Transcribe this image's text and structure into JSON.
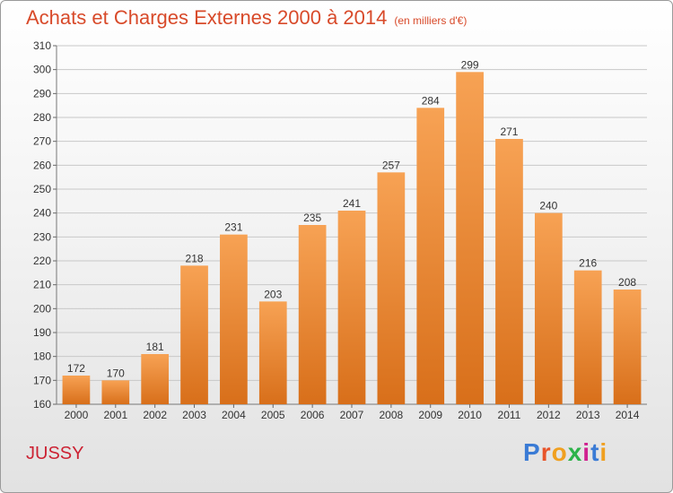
{
  "title": "Achats et Charges Externes 2000 à 2014",
  "subtitle": "(en milliers d'€)",
  "city": "JUSSY",
  "logo": {
    "text": "Proxiti",
    "colors": [
      "#3a7bd5",
      "#e8542a",
      "#f0a020",
      "#2db34a",
      "#d02090",
      "#3a7bd5",
      "#f0a020"
    ]
  },
  "colors": {
    "title": "#d84a2a",
    "bar_top": "#f7a254",
    "bar_bottom": "#d86f1a",
    "grid": "#c8c8c8",
    "city": "#cc2233"
  },
  "chart_data": {
    "type": "bar",
    "categories": [
      "2000",
      "2001",
      "2002",
      "2003",
      "2004",
      "2005",
      "2006",
      "2007",
      "2008",
      "2009",
      "2010",
      "2011",
      "2012",
      "2013",
      "2014"
    ],
    "values": [
      172,
      170,
      181,
      218,
      231,
      203,
      235,
      241,
      257,
      284,
      299,
      271,
      240,
      216,
      208
    ],
    "title": "Achats et Charges Externes 2000 à 2014",
    "subtitle": "(en milliers d'€)",
    "xlabel": "",
    "ylabel": "",
    "ylim": [
      160,
      310
    ],
    "yticks": [
      160,
      170,
      180,
      190,
      200,
      210,
      220,
      230,
      240,
      250,
      260,
      270,
      280,
      290,
      300,
      310
    ],
    "grid": true,
    "data_labels": true
  }
}
